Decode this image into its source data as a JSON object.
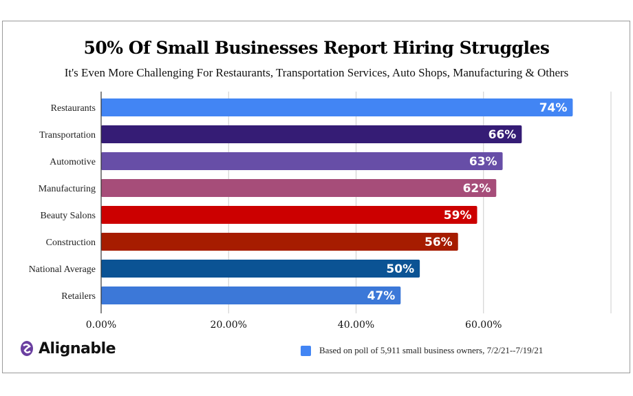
{
  "chart_data": {
    "type": "bar",
    "orientation": "horizontal",
    "title": "50% Of Small Businesses Report Hiring Struggles",
    "subtitle": "It's Even More Challenging For Restaurants, Transportation Services, Auto Shops, Manufacturing & Others",
    "categories": [
      "Restaurants",
      "Transportation",
      "Automotive",
      "Manufacturing",
      "Beauty Salons",
      "Construction",
      "National Average",
      "Retailers"
    ],
    "values": [
      74,
      66,
      63,
      62,
      59,
      56,
      50,
      47
    ],
    "data_labels": [
      "74%",
      "66%",
      "63%",
      "62%",
      "59%",
      "56%",
      "50%",
      "47%"
    ],
    "colors": [
      "#4285f4",
      "#351c75",
      "#674ea7",
      "#a64d79",
      "#cc0000",
      "#a61c00",
      "#0b5394",
      "#3c78d8"
    ],
    "xlim": [
      0,
      80
    ],
    "x_ticks": [
      0,
      20,
      40,
      60
    ],
    "x_tick_labels": [
      "0.00%",
      "20.00%",
      "40.00%",
      "60.00%"
    ],
    "grid": true,
    "legend": {
      "label": "Based on poll of 5,911 small business owners, 7/2/21--7/19/21",
      "color": "#4285f4",
      "placement": "bottom-right"
    }
  },
  "brand": {
    "name": "Alignable",
    "color": "#6a3fa0"
  }
}
